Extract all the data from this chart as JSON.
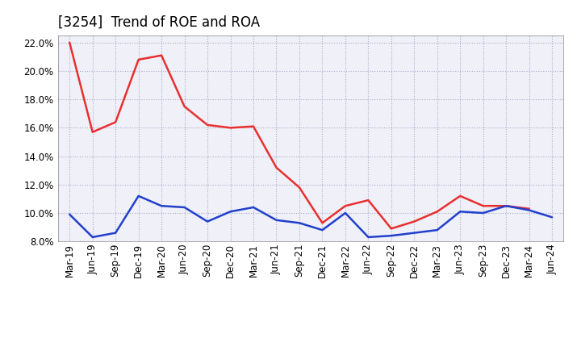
{
  "title": "[3254]  Trend of ROE and ROA",
  "x_labels": [
    "Mar-19",
    "Jun-19",
    "Sep-19",
    "Dec-19",
    "Mar-20",
    "Jun-20",
    "Sep-20",
    "Dec-20",
    "Mar-21",
    "Jun-21",
    "Sep-21",
    "Dec-21",
    "Mar-22",
    "Jun-22",
    "Sep-22",
    "Dec-22",
    "Mar-23",
    "Jun-23",
    "Sep-23",
    "Dec-23",
    "Mar-24",
    "Jun-24"
  ],
  "roe": [
    22.0,
    15.7,
    16.4,
    20.8,
    21.1,
    17.5,
    16.2,
    16.0,
    16.1,
    13.2,
    11.8,
    9.3,
    10.5,
    10.9,
    8.9,
    9.4,
    10.1,
    11.2,
    10.5,
    10.5,
    10.3,
    null
  ],
  "roa": [
    9.9,
    8.3,
    8.6,
    11.2,
    10.5,
    10.4,
    9.4,
    10.1,
    10.4,
    9.5,
    9.3,
    8.8,
    10.0,
    8.3,
    8.4,
    8.6,
    8.8,
    10.1,
    10.0,
    10.5,
    10.2,
    9.7
  ],
  "roe_color": "#e83030",
  "roa_color": "#2040cc",
  "ylim": [
    8.0,
    22.5
  ],
  "yticks": [
    8.0,
    10.0,
    12.0,
    14.0,
    16.0,
    18.0,
    20.0,
    22.0
  ],
  "background_color": "#ffffff",
  "plot_bg_color": "#f0f0f8",
  "grid_color": "#aaaacc",
  "title_fontsize": 12,
  "legend_fontsize": 10,
  "tick_fontsize": 8.5
}
